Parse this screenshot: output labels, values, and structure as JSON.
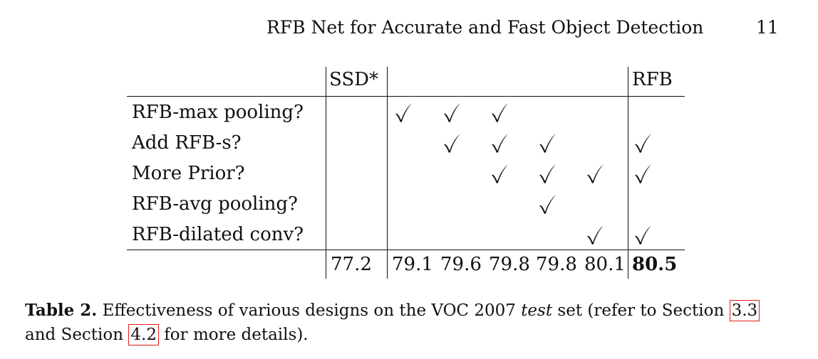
{
  "header": {
    "running_title": "RFB Net for Accurate and Fast Object Detection",
    "page_number": "11"
  },
  "table": {
    "headers": {
      "baseline": "SSD*",
      "final": "RFB"
    },
    "rows": [
      {
        "label": "RFB-max pooling?",
        "checks": [
          false,
          true,
          true,
          true,
          false,
          false,
          false
        ]
      },
      {
        "label": "Add RFB-s?",
        "checks": [
          false,
          false,
          true,
          true,
          true,
          false,
          true
        ]
      },
      {
        "label": "More Prior?",
        "checks": [
          false,
          false,
          false,
          true,
          true,
          true,
          true
        ]
      },
      {
        "label": "RFB-avg pooling?",
        "checks": [
          false,
          false,
          false,
          false,
          true,
          false,
          false
        ]
      },
      {
        "label": "RFB-dilated conv?",
        "checks": [
          false,
          false,
          false,
          false,
          false,
          true,
          true
        ]
      }
    ],
    "scores": [
      "77.2",
      "79.1",
      "79.6",
      "79.8",
      "79.8",
      "80.1",
      "80.5"
    ],
    "best_score_index": 6
  },
  "caption": {
    "label": "Table 2.",
    "text_before_italic": " Effectiveness of various designs on the VOC 2007 ",
    "italic": "test",
    "text_after_italic": " set (refer to Section ",
    "ref1": "3.3",
    "line2_start": "and Section ",
    "ref2": "4.2",
    "line2_end": " for more details)."
  }
}
